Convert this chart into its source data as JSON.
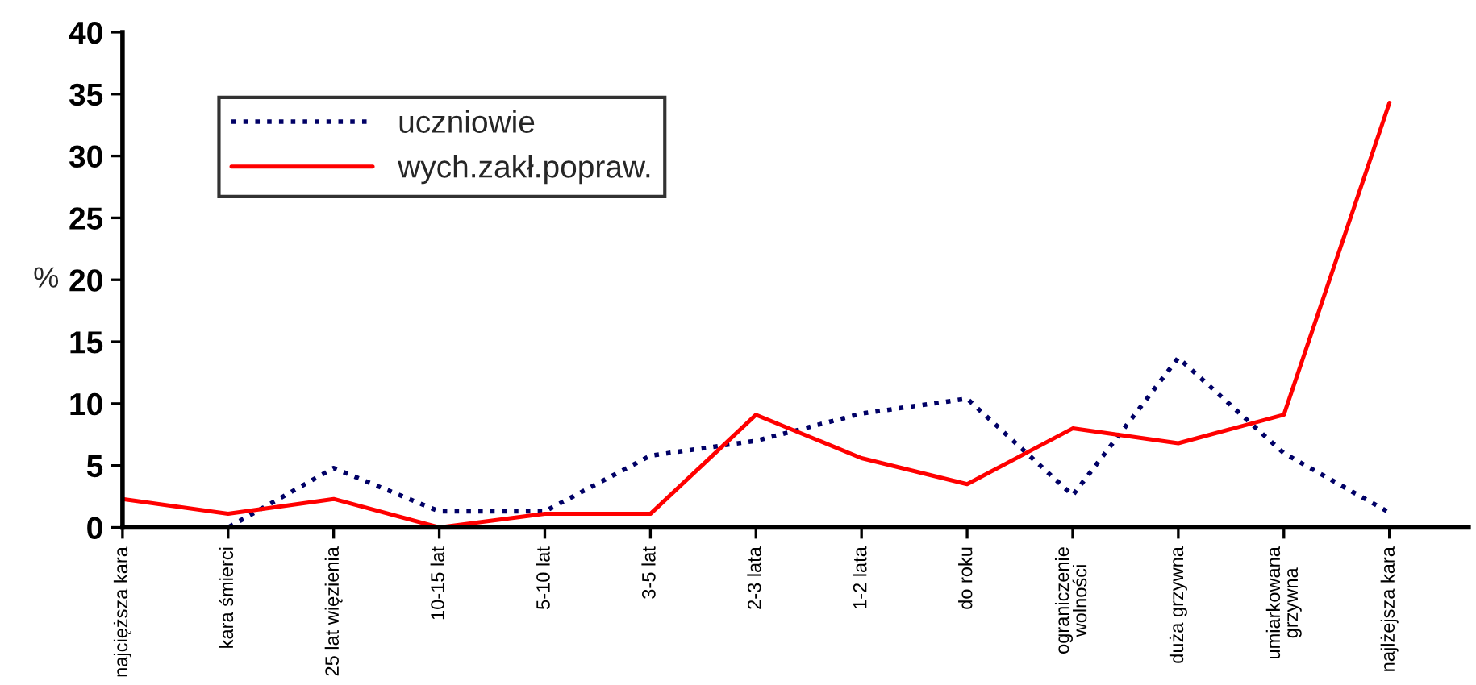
{
  "chart_data": {
    "type": "line",
    "ylabel": "%",
    "categories": [
      "najcięższa kara",
      "kara śmierci",
      "25 lat więzienia",
      "10-15 lat",
      "5-10 lat",
      "3-5 lat",
      "2-3 lata",
      "1-2 lata",
      "do roku",
      "ograniczenie\nwolności",
      "duża grzywna",
      "umiarkowana\ngrzywna",
      "najlżejsza kara"
    ],
    "series": [
      {
        "name": "uczniowie",
        "color": "#000066",
        "line_style": "dotted",
        "values": [
          0,
          0,
          4.8,
          1.3,
          1.3,
          5.8,
          7,
          9.2,
          10.4,
          2.6,
          13.7,
          6,
          1.2
        ]
      },
      {
        "name": "wych.zakł.popraw.",
        "color": "#ff0000",
        "line_style": "solid",
        "values": [
          2.3,
          1.1,
          2.3,
          0,
          1.1,
          1.1,
          9.1,
          5.6,
          3.5,
          8,
          6.8,
          9.1,
          34.3
        ]
      }
    ],
    "ylim": [
      0,
      40
    ],
    "yticks": [
      0,
      5,
      10,
      15,
      20,
      25,
      30,
      35,
      40
    ],
    "legend": "top left",
    "grid": false,
    "marker": "none"
  }
}
